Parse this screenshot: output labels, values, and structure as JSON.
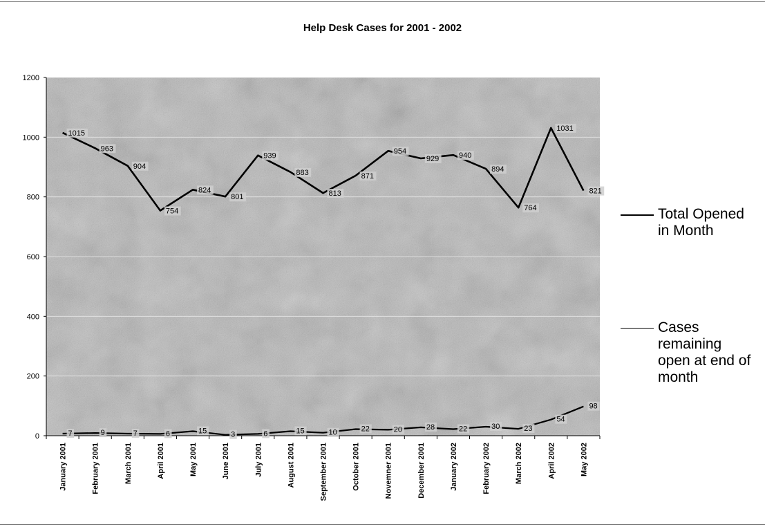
{
  "chart_data": {
    "type": "line",
    "title": "Help Desk Cases for 2001 - 2002",
    "categories": [
      "January 2001",
      "February 2001",
      "March 2001",
      "April 2001",
      "May 2001",
      "June 2001",
      "July 2001",
      "August 2001",
      "September 2001",
      "October 2001",
      "Novemner 2001",
      "December 2001",
      "January 2002",
      "February 2002",
      "March 2002",
      "April 2002",
      "May 2002"
    ],
    "ylim": [
      0,
      1200
    ],
    "yticks": [
      "0",
      "200",
      "400",
      "600",
      "800",
      "1000",
      "1200"
    ],
    "grid": true,
    "legend_position": "right",
    "series": [
      {
        "name": "Total Opened in Month",
        "values": [
          1015,
          963,
          904,
          754,
          824,
          801,
          939,
          883,
          813,
          871,
          954,
          929,
          940,
          894,
          764,
          1031,
          821
        ],
        "labels": [
          "1015",
          "963",
          "904",
          "754",
          "824",
          "801",
          "939",
          "883",
          "813",
          "871",
          "954",
          "929",
          "940",
          "894",
          "764",
          "1031",
          "821"
        ],
        "color": "#000000"
      },
      {
        "name": "Cases remaining open at end of month",
        "values": [
          7,
          9,
          7,
          6,
          15,
          3,
          6,
          15,
          10,
          22,
          20,
          28,
          22,
          30,
          23,
          54,
          98
        ],
        "labels": [
          "7",
          "9",
          "7",
          "6",
          "15",
          "3",
          "6",
          "15",
          "10",
          "22",
          "20",
          "28",
          "22",
          "30",
          "23",
          "54",
          "98"
        ],
        "color": "#000000"
      }
    ]
  }
}
